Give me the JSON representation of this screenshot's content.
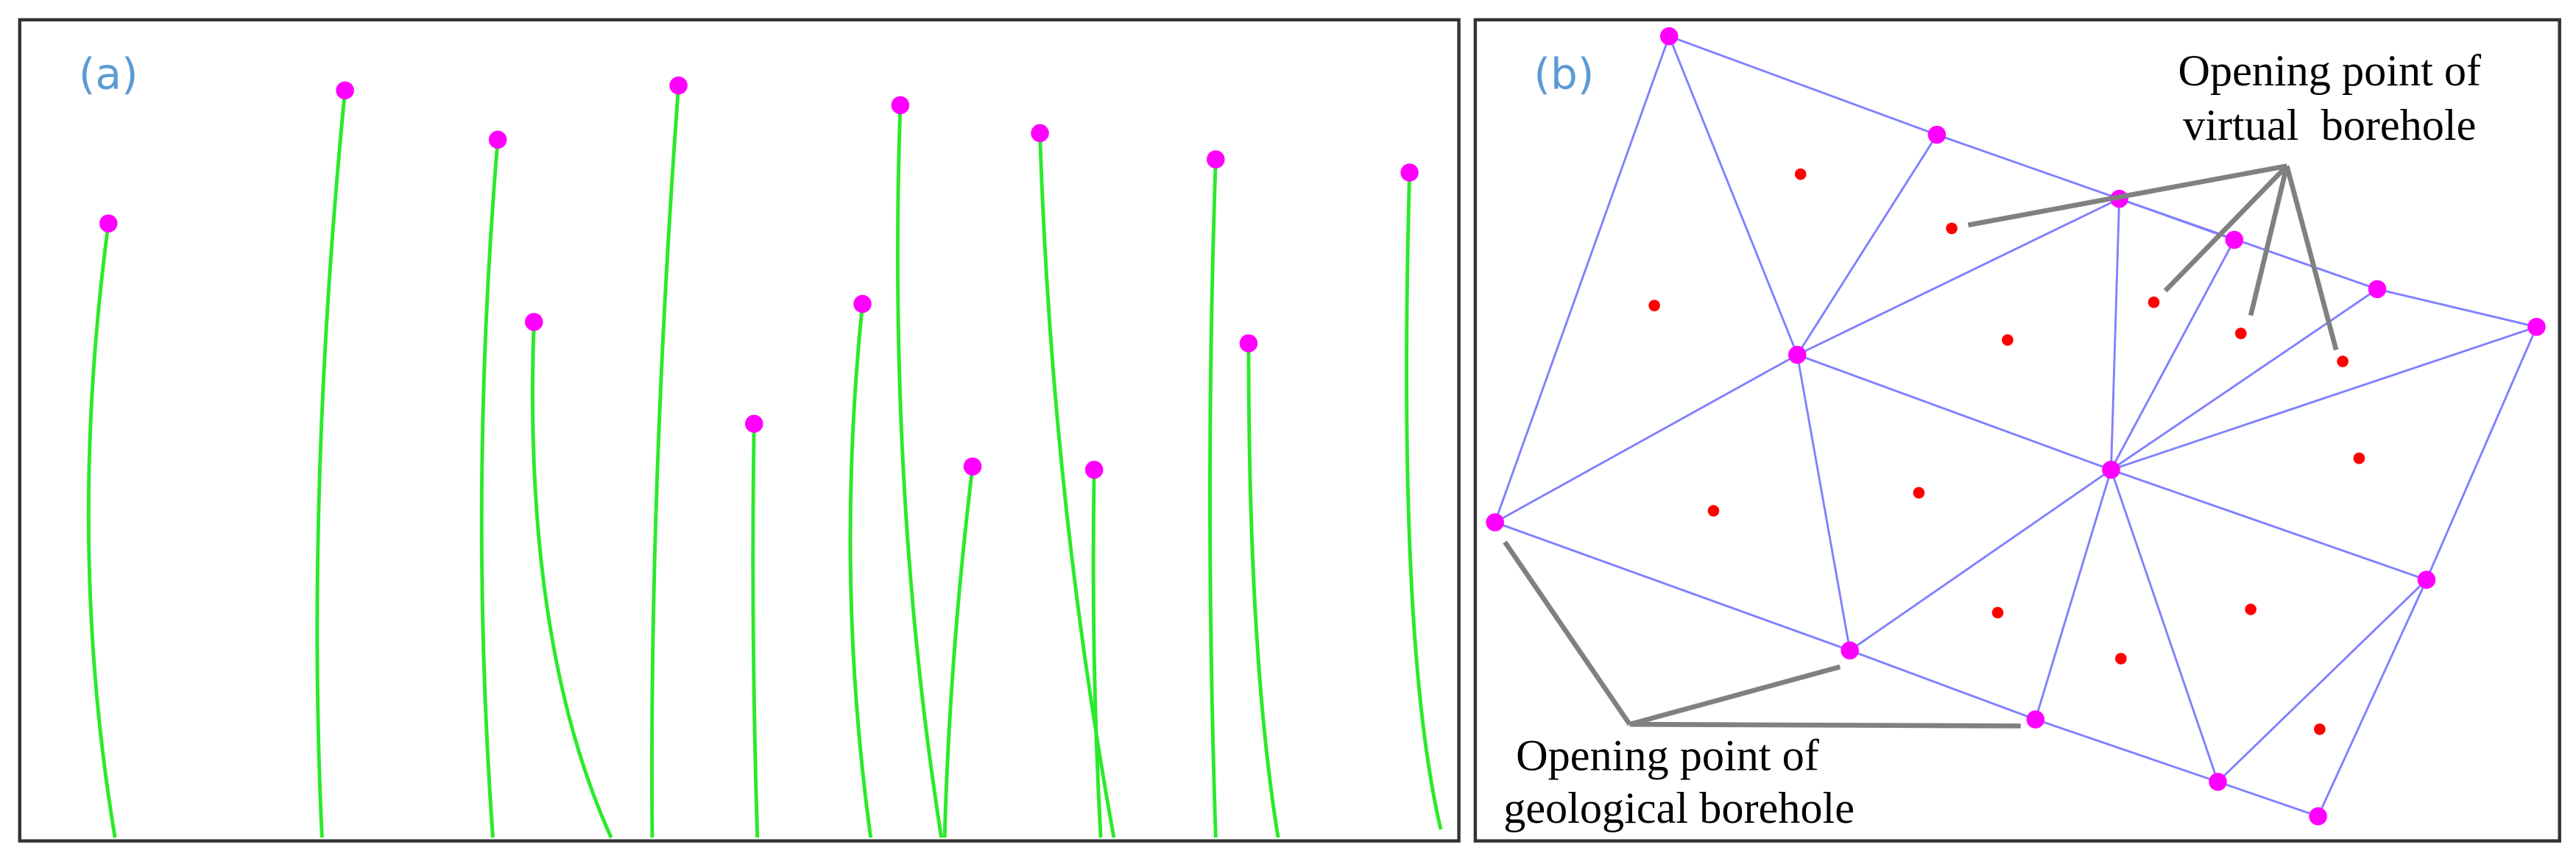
{
  "panels": [
    {
      "label": "(a)"
    },
    {
      "label": "(b)"
    }
  ],
  "annotations": {
    "virtual_borehole": {
      "lines": [
        "Opening point of",
        "virtual  borehole"
      ]
    },
    "geological_borehole": {
      "lines": [
        "Opening point of",
        "geological borehole"
      ]
    }
  }
}
